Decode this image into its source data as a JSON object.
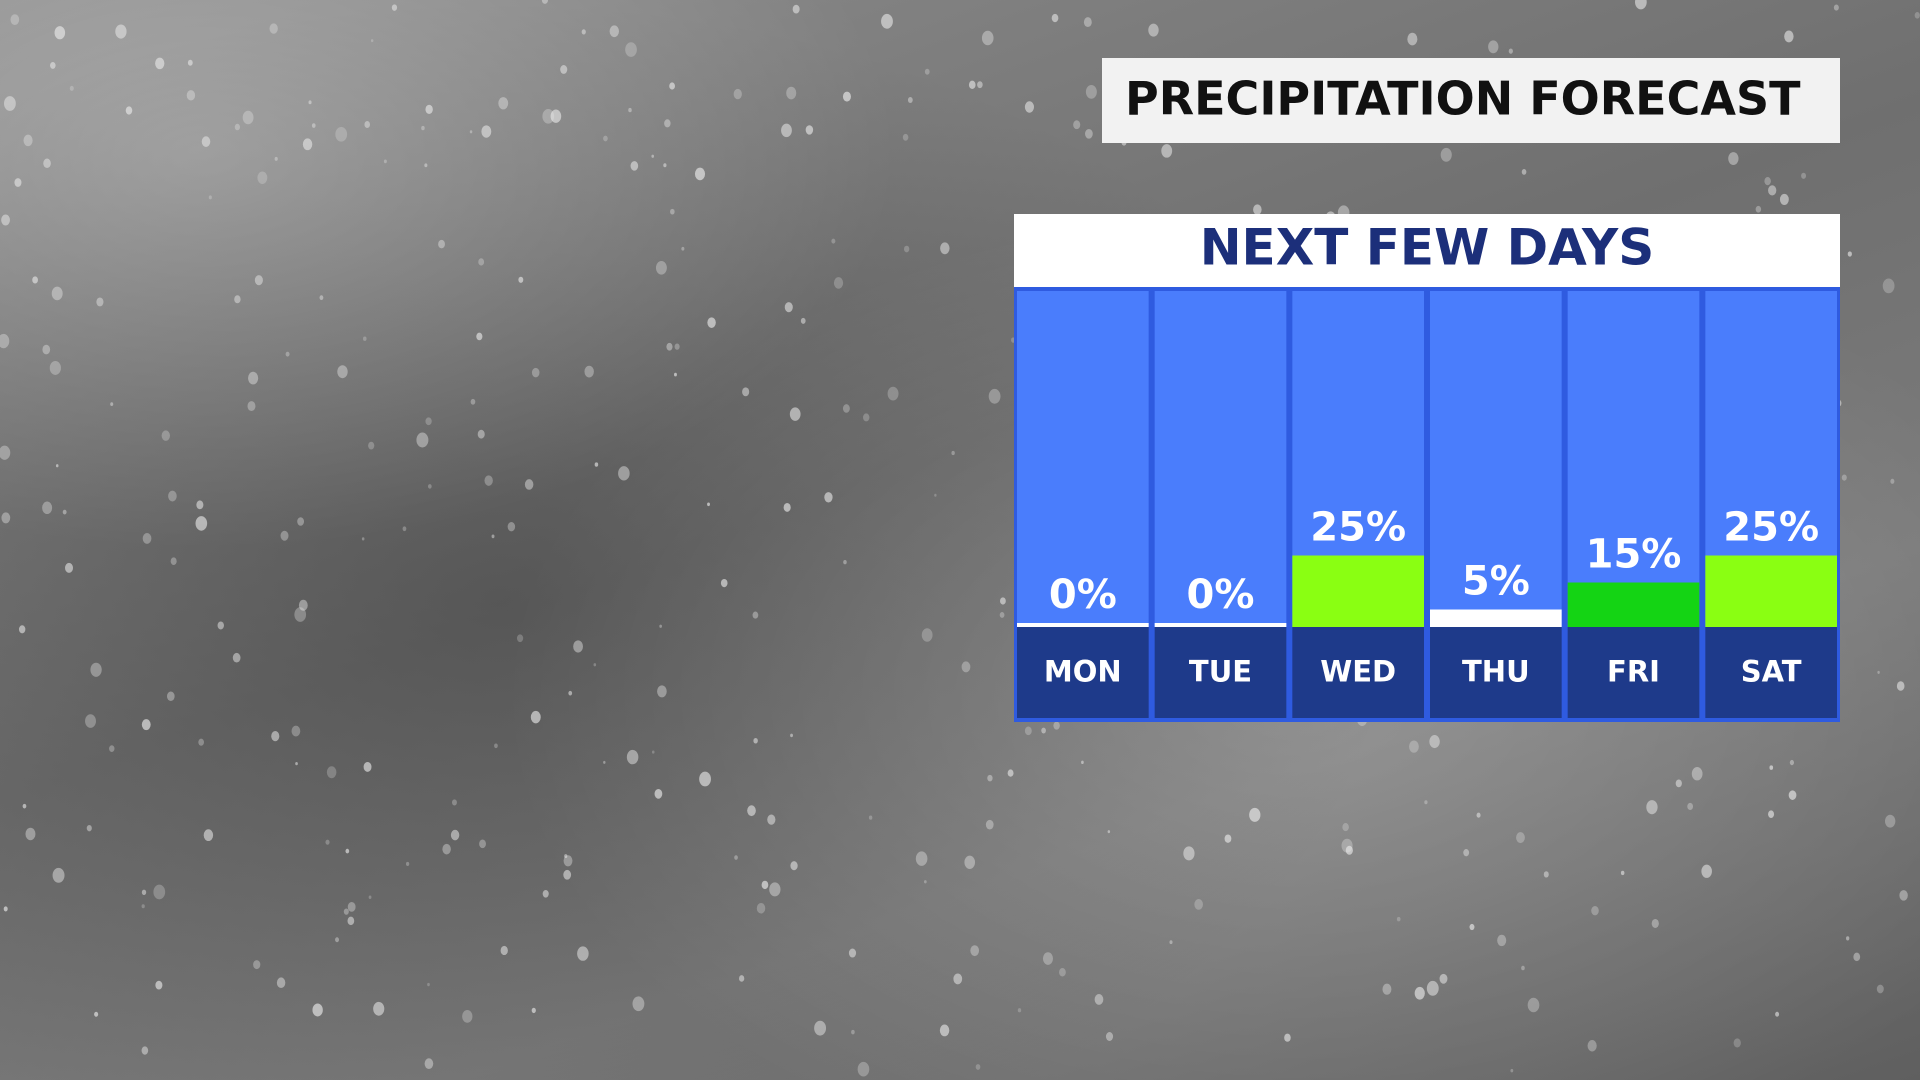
{
  "chart_data": {
    "type": "bar",
    "title": "PRECIPITATION FORECAST",
    "subtitle": "NEXT FEW DAYS",
    "categories": [
      "MON",
      "TUE",
      "WED",
      "THU",
      "FRI",
      "SAT"
    ],
    "values": [
      0,
      0,
      25,
      5,
      15,
      25
    ],
    "value_labels": [
      "0%",
      "0%",
      "25%",
      "5%",
      "15%",
      "25%"
    ],
    "colors": [
      "#ffffff",
      "#ffffff",
      "#8aff12",
      "#ffffff",
      "#14d414",
      "#8aff12"
    ]
  }
}
